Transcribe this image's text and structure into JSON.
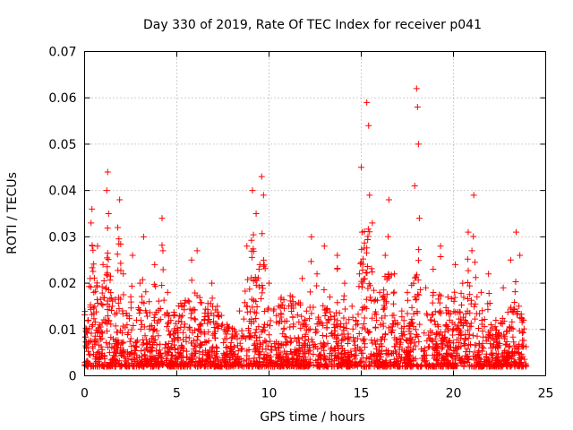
{
  "chart_data": {
    "type": "scatter",
    "title": "Day 330 of 2019, Rate Of TEC Index for receiver p041",
    "xlabel": "GPS time / hours",
    "ylabel": "ROTI / TECUs",
    "xlim": [
      0,
      25
    ],
    "ylim": [
      0,
      0.07
    ],
    "x_ticks": [
      0,
      5,
      10,
      15,
      20,
      25
    ],
    "y_ticks": [
      0,
      0.01,
      0.02,
      0.03,
      0.04,
      0.05,
      0.06,
      0.07
    ],
    "x_tick_labels": [
      "0",
      "5",
      "10",
      "15",
      "20",
      "25"
    ],
    "y_tick_labels": [
      "0",
      "0.01",
      "0.02",
      "0.03",
      "0.04",
      "0.05",
      "0.06",
      "0.07"
    ],
    "grid": true,
    "marker": "+",
    "color": "#ff0000",
    "series": [
      {
        "name": "ROTI",
        "points": [
          [
            0.1,
            0.006
          ],
          [
            0.2,
            0.012
          ],
          [
            0.3,
            0.021
          ],
          [
            0.35,
            0.033
          ],
          [
            0.4,
            0.036
          ],
          [
            0.5,
            0.018
          ],
          [
            0.7,
            0.028
          ],
          [
            0.8,
            0.011
          ],
          [
            1.0,
            0.024
          ],
          [
            1.2,
            0.04
          ],
          [
            1.25,
            0.044
          ],
          [
            1.3,
            0.035
          ],
          [
            1.5,
            0.015
          ],
          [
            1.8,
            0.032
          ],
          [
            1.9,
            0.038
          ],
          [
            2.1,
            0.022
          ],
          [
            2.3,
            0.011
          ],
          [
            2.6,
            0.026
          ],
          [
            3.0,
            0.02
          ],
          [
            3.2,
            0.03
          ],
          [
            3.5,
            0.016
          ],
          [
            3.8,
            0.024
          ],
          [
            4.2,
            0.034
          ],
          [
            4.5,
            0.018
          ],
          [
            4.8,
            0.009
          ],
          [
            5.3,
            0.013
          ],
          [
            5.8,
            0.025
          ],
          [
            6.1,
            0.027
          ],
          [
            6.5,
            0.012
          ],
          [
            6.9,
            0.02
          ],
          [
            7.2,
            0.015
          ],
          [
            7.6,
            0.008
          ],
          [
            8.0,
            0.009
          ],
          [
            8.4,
            0.014
          ],
          [
            8.8,
            0.028
          ],
          [
            9.1,
            0.04
          ],
          [
            9.3,
            0.035
          ],
          [
            9.5,
            0.024
          ],
          [
            9.6,
            0.043
          ],
          [
            9.7,
            0.039
          ],
          [
            10.0,
            0.02
          ],
          [
            10.4,
            0.013
          ],
          [
            10.8,
            0.01
          ],
          [
            11.3,
            0.016
          ],
          [
            11.8,
            0.021
          ],
          [
            12.3,
            0.03
          ],
          [
            12.6,
            0.022
          ],
          [
            13.0,
            0.028
          ],
          [
            13.3,
            0.017
          ],
          [
            13.7,
            0.026
          ],
          [
            14.1,
            0.02
          ],
          [
            14.5,
            0.015
          ],
          [
            14.9,
            0.022
          ],
          [
            15.0,
            0.045
          ],
          [
            15.05,
            0.031
          ],
          [
            15.3,
            0.059
          ],
          [
            15.4,
            0.054
          ],
          [
            15.45,
            0.039
          ],
          [
            15.6,
            0.033
          ],
          [
            16.0,
            0.018
          ],
          [
            16.3,
            0.026
          ],
          [
            16.5,
            0.038
          ],
          [
            16.8,
            0.022
          ],
          [
            17.2,
            0.014
          ],
          [
            17.5,
            0.018
          ],
          [
            17.9,
            0.041
          ],
          [
            18.0,
            0.062
          ],
          [
            18.05,
            0.058
          ],
          [
            18.1,
            0.05
          ],
          [
            18.15,
            0.034
          ],
          [
            18.5,
            0.019
          ],
          [
            18.9,
            0.023
          ],
          [
            19.3,
            0.028
          ],
          [
            19.7,
            0.017
          ],
          [
            20.1,
            0.024
          ],
          [
            20.5,
            0.02
          ],
          [
            20.8,
            0.031
          ],
          [
            21.0,
            0.027
          ],
          [
            21.1,
            0.039
          ],
          [
            21.5,
            0.018
          ],
          [
            21.9,
            0.022
          ],
          [
            22.3,
            0.012
          ],
          [
            22.7,
            0.019
          ],
          [
            23.1,
            0.025
          ],
          [
            23.4,
            0.031
          ],
          [
            23.6,
            0.026
          ],
          [
            23.8,
            0.012
          ]
        ]
      }
    ]
  }
}
